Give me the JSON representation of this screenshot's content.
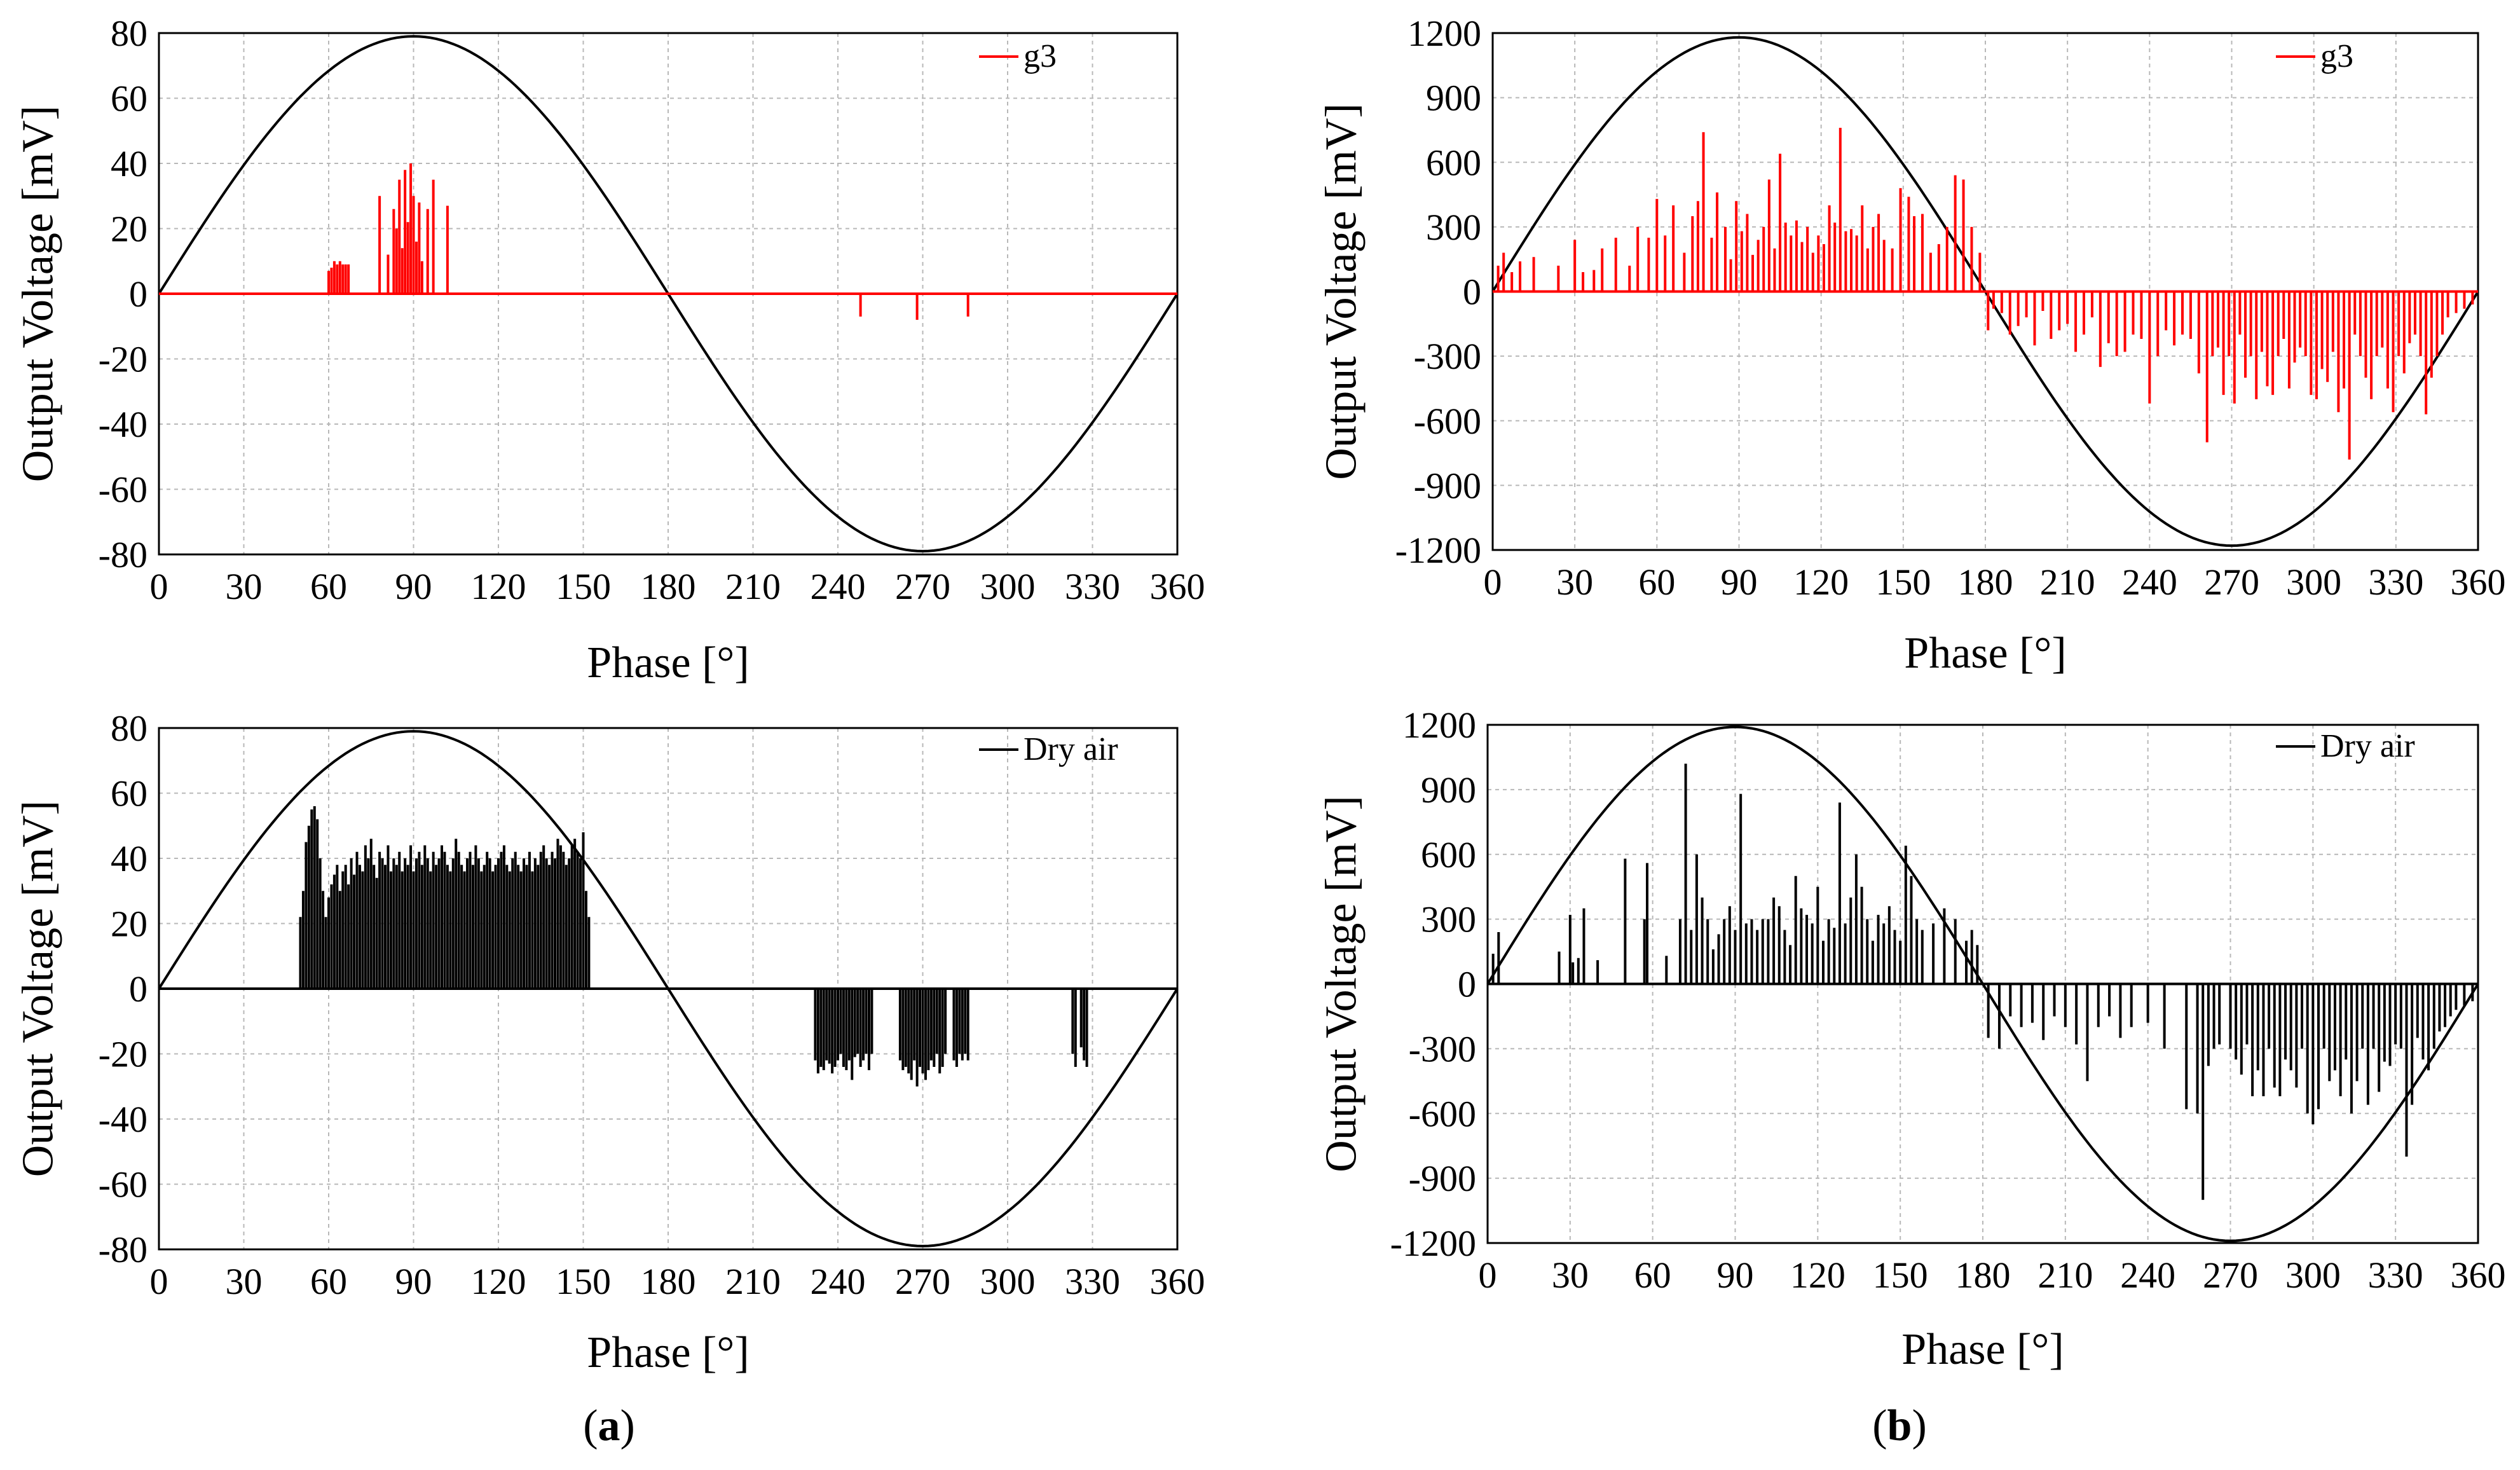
{
  "figure": {
    "captions": [
      {
        "open": "(",
        "letter": "a",
        "close": ")"
      },
      {
        "open": "(",
        "letter": "b",
        "close": ")"
      }
    ]
  },
  "chart_data": [
    {
      "type": "bar",
      "panel": "a-top",
      "xlabel": "Phase [°]",
      "ylabel": "Output Voltage [mV]",
      "xlim": [
        0,
        360
      ],
      "ylim": [
        -80,
        80
      ],
      "x_ticks": [
        0,
        30,
        60,
        90,
        120,
        150,
        180,
        210,
        240,
        270,
        300,
        330,
        360
      ],
      "y_ticks": [
        -80,
        -60,
        -40,
        -20,
        0,
        20,
        40,
        60,
        80
      ],
      "grid": true,
      "legend": "top-right",
      "sine": {
        "amplitude": 79,
        "period_deg": 360
      },
      "series": [
        {
          "name": "g3",
          "color": "#ff0000",
          "x": [
            60,
            61,
            62,
            63,
            64,
            65,
            66,
            67,
            78,
            81,
            83,
            84,
            85,
            86,
            87,
            88,
            89,
            90,
            91,
            92,
            93,
            95,
            97,
            102,
            248,
            268,
            286
          ],
          "values": [
            7,
            8,
            10,
            9,
            10,
            9,
            9,
            9,
            30,
            12,
            26,
            20,
            35,
            14,
            38,
            22,
            40,
            30,
            16,
            28,
            10,
            26,
            35,
            27,
            -7,
            -8,
            -7
          ]
        }
      ]
    },
    {
      "type": "bar",
      "panel": "b-top",
      "xlabel": "Phase [°]",
      "ylabel": "Output Voltage [mV]",
      "xlim": [
        0,
        360
      ],
      "ylim": [
        -1200,
        1200
      ],
      "x_ticks": [
        0,
        30,
        60,
        90,
        120,
        150,
        180,
        210,
        240,
        270,
        300,
        330,
        360
      ],
      "y_ticks": [
        -1200,
        -900,
        -600,
        -300,
        0,
        300,
        600,
        900,
        1200
      ],
      "grid": true,
      "legend": "top-right",
      "sine": {
        "amplitude": 1180,
        "period_deg": 360
      },
      "series": [
        {
          "name": "g3",
          "color": "#ff0000",
          "x": [
            2,
            4,
            7,
            10,
            15,
            24,
            30,
            33,
            37,
            40,
            45,
            50,
            53,
            57,
            60,
            63,
            66,
            70,
            73,
            75,
            77,
            80,
            82,
            85,
            87,
            89,
            91,
            93,
            95,
            97,
            99,
            101,
            103,
            105,
            107,
            109,
            111,
            113,
            115,
            117,
            119,
            121,
            123,
            125,
            127,
            129,
            131,
            133,
            135,
            137,
            139,
            141,
            143,
            146,
            149,
            152,
            154,
            157,
            160,
            163,
            166,
            169,
            172,
            175,
            178,
            181,
            183,
            186,
            189,
            192,
            195,
            198,
            201,
            204,
            207,
            210,
            213,
            216,
            219,
            222,
            225,
            228,
            231,
            234,
            237,
            240,
            243,
            246,
            249,
            252,
            255,
            258,
            261,
            263,
            265,
            267,
            269,
            271,
            273,
            275,
            277,
            279,
            281,
            283,
            285,
            287,
            289,
            291,
            293,
            295,
            297,
            299,
            301,
            303,
            305,
            307,
            309,
            311,
            313,
            315,
            317,
            319,
            321,
            323,
            325,
            327,
            329,
            331,
            333,
            335,
            337,
            339,
            341,
            343,
            345,
            347,
            349,
            352,
            355,
            358
          ],
          "values": [
            120,
            180,
            90,
            140,
            160,
            120,
            240,
            90,
            100,
            200,
            250,
            120,
            300,
            250,
            430,
            260,
            400,
            180,
            350,
            420,
            740,
            250,
            460,
            300,
            150,
            420,
            280,
            360,
            170,
            240,
            300,
            520,
            200,
            640,
            320,
            260,
            330,
            230,
            300,
            180,
            260,
            220,
            400,
            320,
            760,
            280,
            290,
            260,
            400,
            200,
            300,
            360,
            240,
            200,
            480,
            440,
            350,
            360,
            180,
            220,
            300,
            540,
            520,
            300,
            180,
            -180,
            -80,
            -100,
            -200,
            -160,
            -120,
            -250,
            -90,
            -220,
            -180,
            -150,
            -280,
            -200,
            -120,
            -350,
            -240,
            -300,
            -280,
            -200,
            -220,
            -520,
            -300,
            -180,
            -250,
            -200,
            -220,
            -380,
            -700,
            -300,
            -260,
            -480,
            -300,
            -520,
            -200,
            -400,
            -300,
            -500,
            -280,
            -440,
            -480,
            -300,
            -220,
            -450,
            -330,
            -260,
            -300,
            -480,
            -500,
            -360,
            -420,
            -280,
            -560,
            -450,
            -780,
            -200,
            -300,
            -400,
            -500,
            -300,
            -260,
            -450,
            -560,
            -300,
            -380,
            -240,
            -200,
            -300,
            -570,
            -400,
            -300,
            -200,
            -120,
            -100,
            -80,
            -60
          ]
        }
      ]
    },
    {
      "type": "bar",
      "panel": "a-bottom",
      "xlabel": "Phase [°]",
      "ylabel": "Output Voltage [mV]",
      "xlim": [
        0,
        360
      ],
      "ylim": [
        -80,
        80
      ],
      "x_ticks": [
        0,
        30,
        60,
        90,
        120,
        150,
        180,
        210,
        240,
        270,
        300,
        330,
        360
      ],
      "y_ticks": [
        -80,
        -60,
        -40,
        -20,
        0,
        20,
        40,
        60,
        80
      ],
      "grid": true,
      "legend": "top-right",
      "sine": {
        "amplitude": 79,
        "period_deg": 360
      },
      "series": [
        {
          "name": "Dry air",
          "color": "#000000",
          "x": [
            50,
            51,
            52,
            53,
            54,
            55,
            56,
            57,
            58,
            59,
            60,
            61,
            62,
            63,
            64,
            65,
            66,
            67,
            68,
            69,
            70,
            71,
            72,
            73,
            74,
            75,
            76,
            77,
            78,
            79,
            80,
            81,
            82,
            83,
            84,
            85,
            86,
            87,
            88,
            89,
            90,
            91,
            92,
            93,
            94,
            95,
            96,
            97,
            98,
            99,
            100,
            101,
            102,
            103,
            104,
            105,
            106,
            107,
            108,
            109,
            110,
            111,
            112,
            113,
            114,
            115,
            116,
            117,
            118,
            119,
            120,
            121,
            122,
            123,
            124,
            125,
            126,
            127,
            128,
            129,
            130,
            131,
            132,
            133,
            134,
            135,
            136,
            137,
            138,
            139,
            140,
            141,
            142,
            143,
            144,
            145,
            146,
            147,
            148,
            149,
            150,
            151,
            152,
            232,
            233,
            234,
            235,
            236,
            237,
            238,
            239,
            240,
            241,
            242,
            243,
            244,
            245,
            246,
            247,
            248,
            249,
            250,
            251,
            252,
            262,
            263,
            264,
            265,
            266,
            267,
            268,
            269,
            270,
            271,
            272,
            273,
            274,
            275,
            276,
            277,
            278,
            281,
            282,
            283,
            284,
            285,
            286,
            323,
            324,
            326,
            327,
            328
          ],
          "values": [
            22,
            30,
            45,
            50,
            55,
            56,
            52,
            40,
            30,
            22,
            28,
            32,
            35,
            38,
            30,
            36,
            38,
            32,
            40,
            35,
            42,
            38,
            36,
            44,
            40,
            46,
            38,
            34,
            42,
            40,
            38,
            44,
            36,
            40,
            38,
            42,
            36,
            40,
            38,
            44,
            36,
            40,
            42,
            38,
            44,
            40,
            36,
            42,
            38,
            40,
            44,
            42,
            38,
            36,
            40,
            46,
            42,
            38,
            36,
            40,
            42,
            38,
            44,
            40,
            36,
            38,
            42,
            40,
            36,
            38,
            40,
            42,
            44,
            38,
            36,
            40,
            42,
            38,
            36,
            40,
            38,
            42,
            36,
            40,
            38,
            42,
            44,
            40,
            38,
            42,
            40,
            46,
            44,
            42,
            38,
            40,
            44,
            46,
            42,
            40,
            48,
            30,
            22,
            -22,
            -26,
            -24,
            -25,
            -22,
            -23,
            -26,
            -24,
            -22,
            -20,
            -24,
            -25,
            -22,
            -28,
            -21,
            -20,
            -24,
            -22,
            -20,
            -25,
            -20,
            -22,
            -25,
            -24,
            -26,
            -28,
            -22,
            -30,
            -24,
            -26,
            -28,
            -25,
            -22,
            -24,
            -20,
            -26,
            -24,
            -20,
            -22,
            -24,
            -20,
            -22,
            -20,
            -22,
            -20,
            -24,
            -18,
            -22,
            -24
          ]
        }
      ]
    },
    {
      "type": "bar",
      "panel": "b-bottom",
      "xlabel": "Phase [°]",
      "ylabel": "Output Voltage [mV]",
      "xlim": [
        0,
        360
      ],
      "ylim": [
        -1200,
        1200
      ],
      "x_ticks": [
        0,
        30,
        60,
        90,
        120,
        150,
        180,
        210,
        240,
        270,
        300,
        330,
        360
      ],
      "y_ticks": [
        -1200,
        -900,
        -600,
        -300,
        0,
        300,
        600,
        900,
        1200
      ],
      "grid": true,
      "legend": "top-right",
      "sine": {
        "amplitude": 1190,
        "period_deg": 360
      },
      "series": [
        {
          "name": "Dry air",
          "color": "#000000",
          "x": [
            2,
            4,
            26,
            30,
            31,
            33,
            35,
            40,
            50,
            57,
            58,
            65,
            70,
            72,
            74,
            76,
            78,
            80,
            82,
            84,
            86,
            88,
            90,
            92,
            94,
            96,
            98,
            100,
            102,
            104,
            106,
            108,
            110,
            112,
            114,
            116,
            118,
            120,
            122,
            124,
            126,
            128,
            130,
            132,
            134,
            136,
            138,
            140,
            142,
            144,
            146,
            148,
            150,
            152,
            154,
            156,
            158,
            162,
            166,
            170,
            174,
            176,
            178,
            182,
            186,
            190,
            194,
            198,
            202,
            206,
            210,
            214,
            218,
            222,
            226,
            230,
            234,
            240,
            246,
            254,
            258,
            260,
            262,
            264,
            266,
            270,
            272,
            274,
            276,
            278,
            280,
            282,
            284,
            286,
            288,
            290,
            292,
            294,
            296,
            298,
            300,
            302,
            304,
            306,
            308,
            310,
            312,
            314,
            316,
            318,
            320,
            322,
            324,
            326,
            328,
            330,
            332,
            334,
            336,
            338,
            340,
            342,
            344,
            346,
            348,
            350,
            352,
            355,
            358
          ],
          "values": [
            140,
            240,
            150,
            320,
            100,
            120,
            350,
            110,
            580,
            300,
            560,
            130,
            300,
            1020,
            250,
            600,
            400,
            300,
            160,
            230,
            300,
            360,
            250,
            880,
            280,
            300,
            250,
            300,
            300,
            400,
            360,
            250,
            180,
            500,
            350,
            320,
            280,
            450,
            200,
            300,
            260,
            840,
            280,
            400,
            600,
            450,
            300,
            200,
            320,
            280,
            360,
            250,
            200,
            640,
            500,
            300,
            250,
            280,
            350,
            300,
            200,
            250,
            180,
            -250,
            -300,
            -150,
            -200,
            -180,
            -260,
            -150,
            -200,
            -280,
            -450,
            -200,
            -150,
            -250,
            -200,
            -180,
            -300,
            -580,
            -600,
            -1000,
            -380,
            -300,
            -280,
            -300,
            -350,
            -420,
            -280,
            -520,
            -400,
            -520,
            -300,
            -480,
            -520,
            -350,
            -400,
            -480,
            -300,
            -600,
            -650,
            -580,
            -300,
            -450,
            -400,
            -520,
            -350,
            -600,
            -450,
            -300,
            -560,
            -300,
            -500,
            -360,
            -380,
            -280,
            -300,
            -800,
            -560,
            -250,
            -350,
            -400,
            -300,
            -220,
            -200,
            -150,
            -120,
            -100,
            -80
          ]
        }
      ]
    }
  ]
}
